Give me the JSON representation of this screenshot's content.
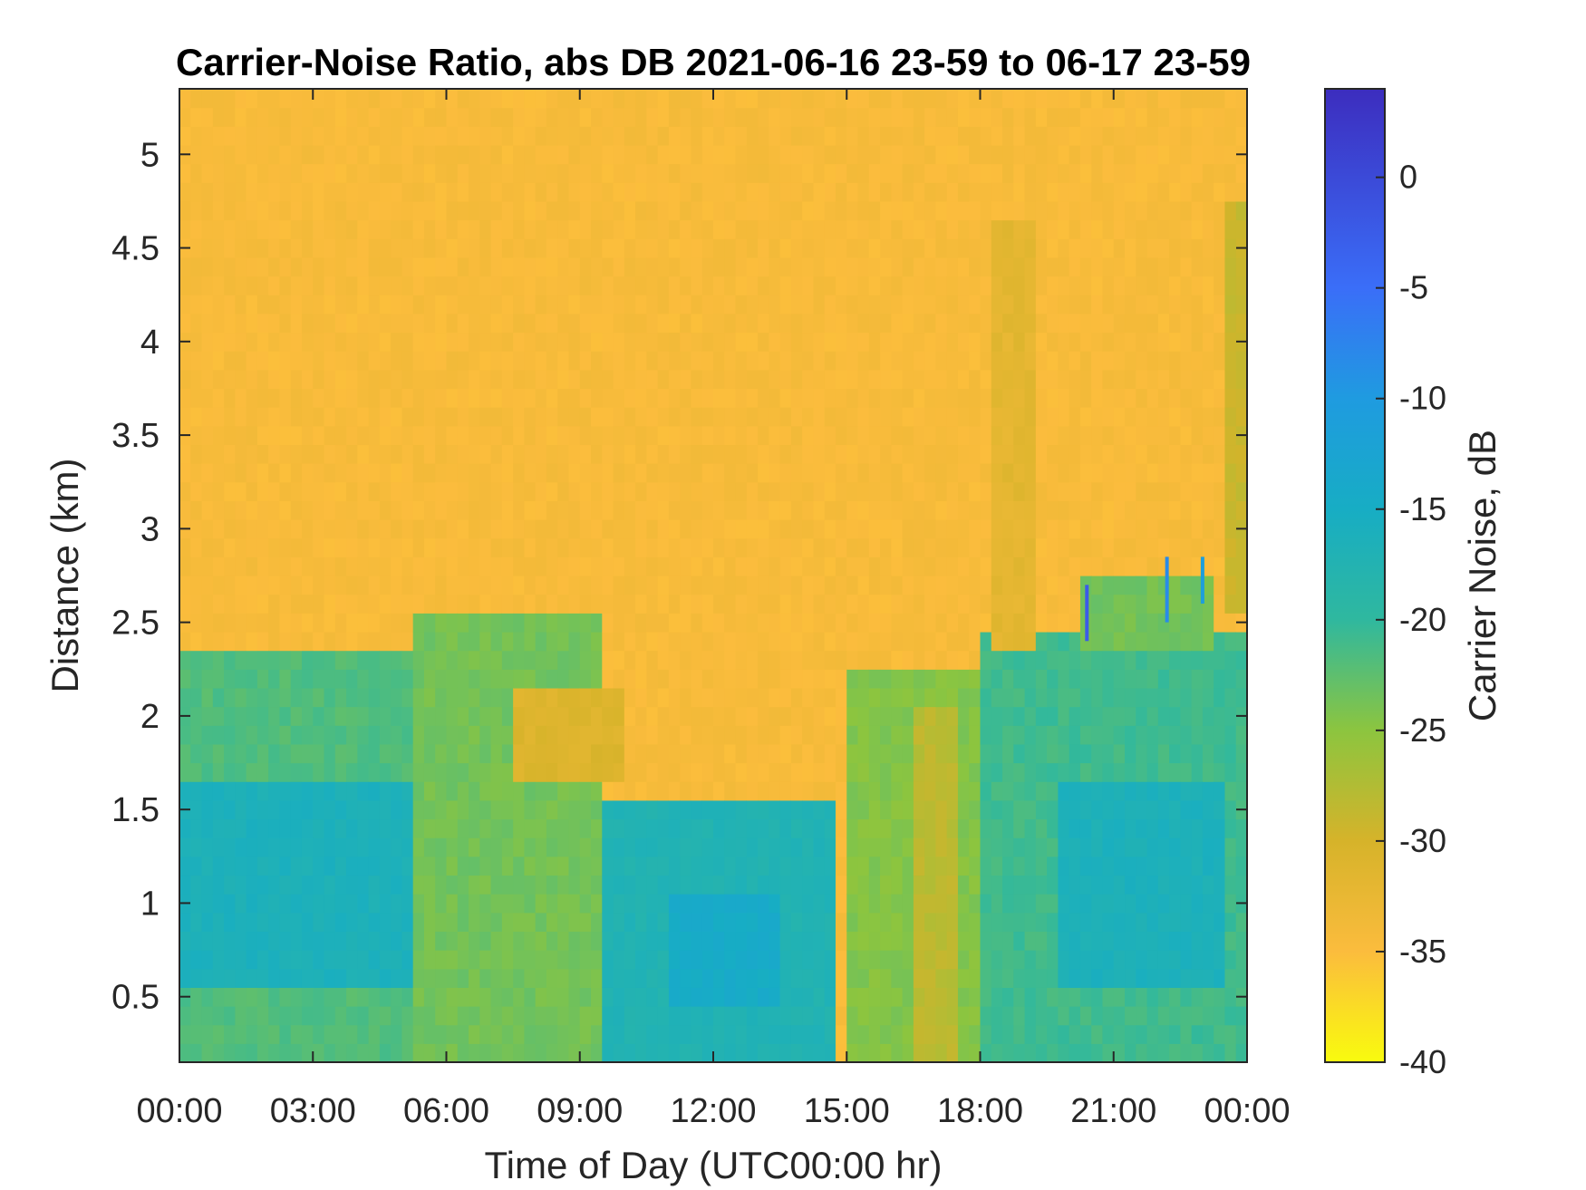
{
  "chart_data": {
    "type": "heatmap",
    "title": "Carrier-Noise Ratio, abs DB 2021-06-16 23-59 to 06-17 23-59",
    "xlabel": "Time of Day (UTC00:00 hr)",
    "ylabel": "Distance (km)",
    "colorbar_label": "Carrier Noise, dB",
    "x_ticks": [
      "00:00",
      "03:00",
      "06:00",
      "09:00",
      "12:00",
      "15:00",
      "18:00",
      "21:00",
      "00:00"
    ],
    "x_tick_hours": [
      0,
      3,
      6,
      9,
      12,
      15,
      18,
      21,
      24
    ],
    "xlim_hours": [
      0,
      24
    ],
    "y_ticks": [
      "0.5",
      "1",
      "1.5",
      "2",
      "2.5",
      "3",
      "3.5",
      "4",
      "4.5",
      "5"
    ],
    "y_tick_values": [
      0.5,
      1,
      1.5,
      2,
      2.5,
      3,
      3.5,
      4,
      4.5,
      5
    ],
    "ylim": [
      0.15,
      5.35
    ],
    "colorbar_ticks": [
      "0",
      "-5",
      "-10",
      "-15",
      "-20",
      "-25",
      "-30",
      "-35",
      "-40"
    ],
    "colorbar_tick_values": [
      0,
      -5,
      -10,
      -15,
      -20,
      -25,
      -30,
      -35,
      -40
    ],
    "clim": [
      -40,
      4
    ],
    "colormap": [
      "#F9FB0E",
      "#FBBC3D",
      "#D6B32A",
      "#8CC53F",
      "#2FB89F",
      "#17ADC4",
      "#1F9BE0",
      "#3A6EF8",
      "#3C2DBE"
    ],
    "background_value": -34,
    "regions": [
      {
        "name": "boundary-layer-night",
        "hours": [
          0,
          6.0
        ],
        "km": [
          0.15,
          2.3
        ],
        "value": -20
      },
      {
        "name": "night-core",
        "hours": [
          0,
          5.3
        ],
        "km": [
          0.6,
          1.6
        ],
        "value": -14
      },
      {
        "name": "morning-transition",
        "hours": [
          5.3,
          9.5
        ],
        "km": [
          0.15,
          2.5
        ],
        "value": -22
      },
      {
        "name": "morning-residual",
        "hours": [
          7.5,
          10.0
        ],
        "km": [
          1.6,
          2.1
        ],
        "value": -30
      },
      {
        "name": "midday-core",
        "hours": [
          9.5,
          14.8
        ],
        "km": [
          0.15,
          1.5
        ],
        "value": -15
      },
      {
        "name": "midday-deep",
        "hours": [
          11.0,
          13.5
        ],
        "km": [
          0.4,
          1.0
        ],
        "value": -12
      },
      {
        "name": "afternoon-mixed",
        "hours": [
          15.0,
          18.0
        ],
        "km": [
          0.15,
          2.2
        ],
        "value": -23
      },
      {
        "name": "afternoon-dry",
        "hours": [
          16.5,
          17.5
        ],
        "km": [
          0.15,
          2.0
        ],
        "value": -27
      },
      {
        "name": "evening-layer",
        "hours": [
          18.0,
          24.0
        ],
        "km": [
          0.15,
          2.4
        ],
        "value": -19
      },
      {
        "name": "evening-core",
        "hours": [
          19.8,
          23.5
        ],
        "km": [
          0.6,
          1.6
        ],
        "value": -14
      },
      {
        "name": "late-layer-top",
        "hours": [
          20.3,
          23.3
        ],
        "km": [
          2.4,
          2.7
        ],
        "value": -22
      },
      {
        "name": "late-plume",
        "hours": [
          23.6,
          24.0
        ],
        "km": [
          2.5,
          4.7
        ],
        "value": -28
      },
      {
        "name": "plume-18h",
        "hours": [
          18.3,
          19.3
        ],
        "km": [
          2.4,
          4.6
        ],
        "value": -31
      }
    ],
    "spikes": [
      {
        "hours": 20.4,
        "km": [
          2.4,
          2.7
        ],
        "value": 0
      },
      {
        "hours": 22.2,
        "km": [
          2.5,
          2.85
        ],
        "value": -5
      },
      {
        "hours": 23.0,
        "km": [
          2.6,
          2.85
        ],
        "value": -8
      }
    ]
  }
}
